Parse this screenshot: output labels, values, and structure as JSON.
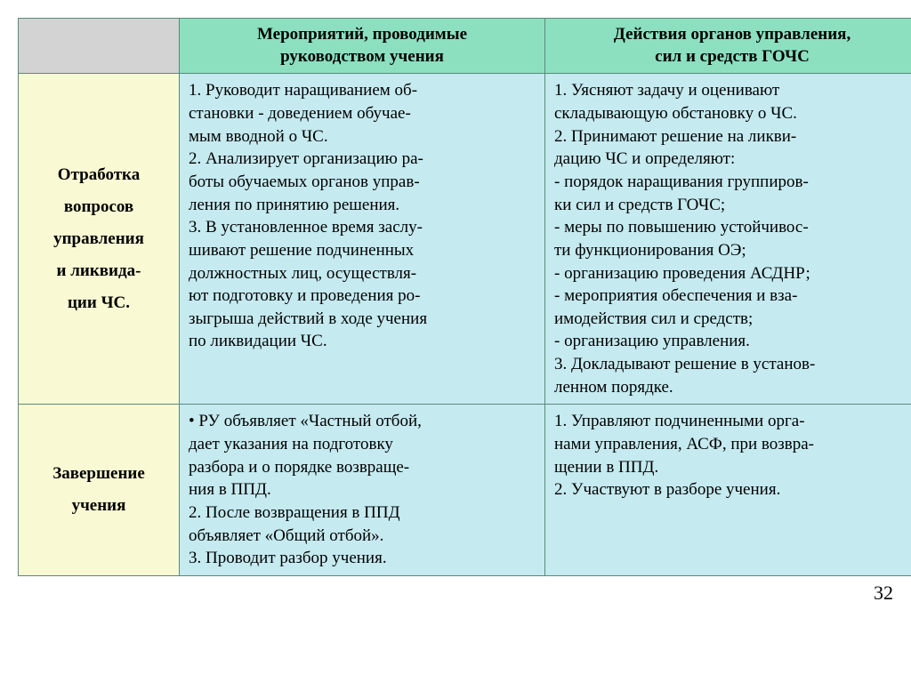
{
  "colors": {
    "header_bg": "#8ce0c0",
    "empty_header_bg": "#d3d3d3",
    "label_bg": "#f9f9d4",
    "content_bg": "#c5eaf0",
    "border": "#5a8a7a",
    "text": "#000000"
  },
  "table": {
    "headers": {
      "col2_line1": "Мероприятий,  проводимые",
      "col2_line2": "руководством  учения",
      "col3_line1": "Действия  органов  управления,",
      "col3_line2": "сил  и  средств  ГОЧС"
    },
    "rows": [
      {
        "label_l1": "Отработка",
        "label_l2": "вопросов",
        "label_l3": "управления",
        "label_l4": "и ликвида-",
        "label_l5": "ции ЧС.",
        "col2": "1. Руководит наращиванием об-\nстановки - доведением обучае-\nмым вводной о ЧС.\n2. Анализирует организацию ра-\nботы обучаемых органов управ-\nления по принятию решения.\n3. В установленное время заслу-\nшивают решение подчиненных\n должностных лиц, осуществля-\nют подготовку и проведения ро-\nзыгрыша действий в ходе учения\nпо ликвидации ЧС.",
        "col3": "1. Уясняют задачу и оценивают\nскладывающую обстановку о ЧС.\n2. Принимают решение на ликви-\nдацию ЧС и определяют:\n- порядок наращивания группиров-\nки сил и средств ГОЧС;\n- меры по повышению устойчивос-\nти функционирования ОЭ;\n- организацию проведения АСДНР;\n- мероприятия  обеспечения и вза-\nимодействия сил и средств;\n- организацию управления.\n3. Докладывают решение в установ-\nленном порядке."
      },
      {
        "label_l1": "Завершение",
        "label_l2": "учения",
        "label_l3": "",
        "label_l4": "",
        "label_l5": "",
        "col2": "  •    РУ объявляет «Частный отбой,\nдает  указания  на  подготовку\nразбора и о порядке возвраще-\nния в ППД.\n2. После возвращения в ППД\nобъявляет «Общий отбой».\n3. Проводит разбор учения.",
        "col3": "1. Управляют подчиненными орга-\nнами управления, АСФ, при возвра-\nщении в ППД.\n2. Участвуют в разборе учения."
      }
    ]
  },
  "page_number": "32"
}
